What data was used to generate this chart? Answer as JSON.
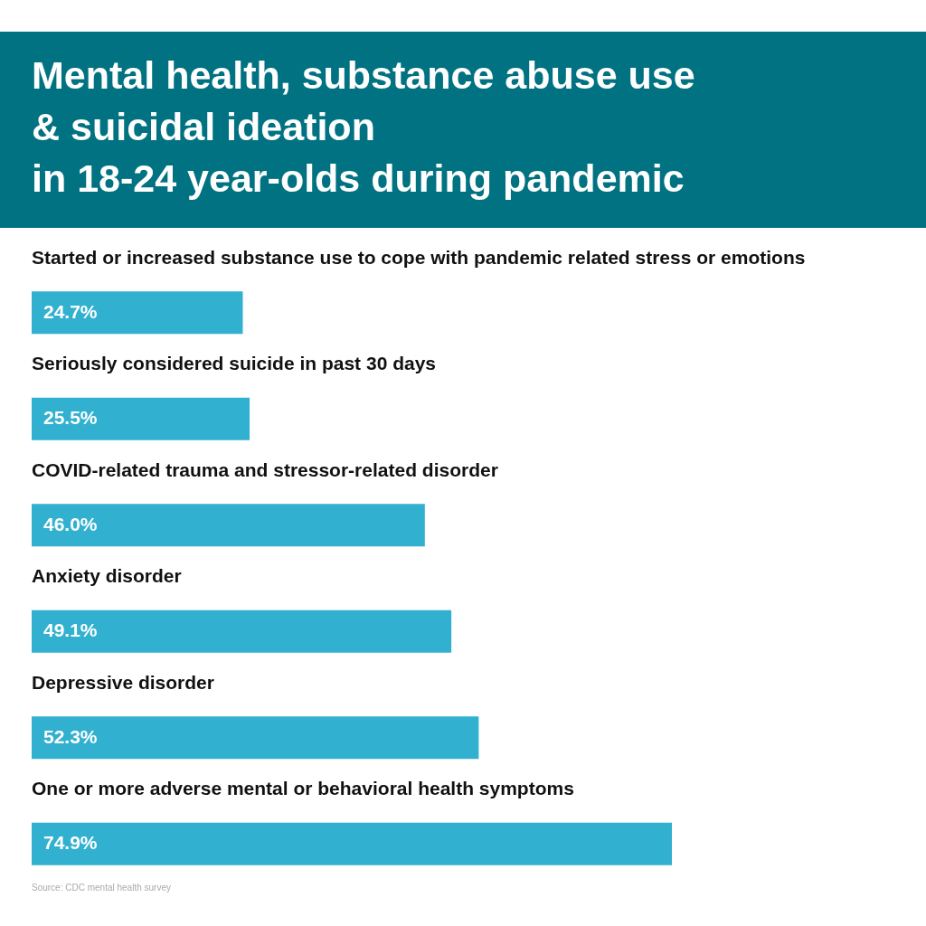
{
  "chart_data": {
    "type": "bar",
    "orientation": "horizontal",
    "title": "Mental health, substance abuse use\n& suicidal ideation\nin 18-24 year-olds during pandemic",
    "categories": [
      "Started or increased substance use to cope with pandemic related stress or emotions",
      "Seriously considered suicide in past 30 days",
      "COVID-related trauma and stressor-related disorder",
      "Anxiety disorder",
      "Depressive disorder",
      "One or more adverse mental or behavioral health symptoms"
    ],
    "values": [
      24.7,
      25.5,
      46.0,
      49.1,
      52.3,
      74.9
    ],
    "value_labels": [
      "24.7%",
      "25.5%",
      "46.0%",
      "49.1%",
      "52.3%",
      "74.9%"
    ],
    "color": "#31b0cf",
    "annotations": [
      "Source: CDC mental health survey"
    ]
  }
}
